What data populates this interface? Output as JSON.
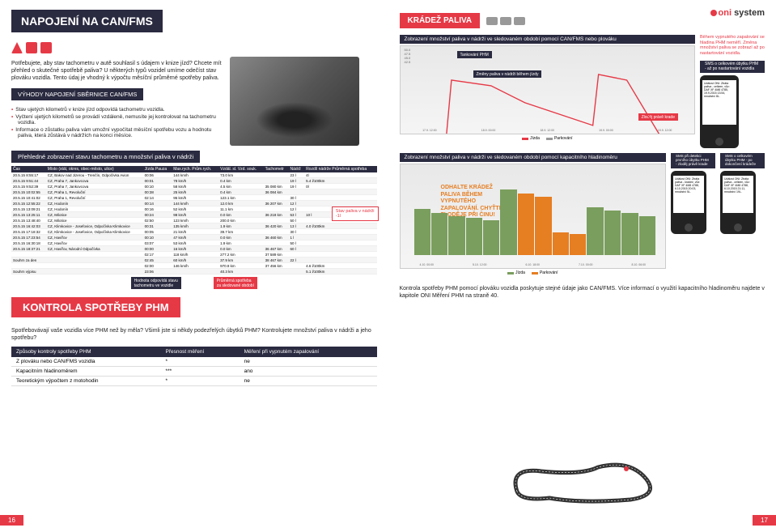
{
  "logo": {
    "brand": "oni",
    "suffix": "system"
  },
  "left": {
    "title": "NAPOJENÍ NA CAN/FMS",
    "intro": "Potřebujete, aby stav tachometru v autě souhlasil s údajem v knize jízd? Chcete mít přehled o skutečné spotřebě paliva? U některých typů vozidel umíme odečíst stav plováku vozidla. Tento údaj je vhodný k výpočtu měsíční průměrné spotřeby paliva.",
    "benefits_title": "VÝHODY NAPOJENÍ SBĚRNICE CAN/FMS",
    "benefits": [
      "Stav ujetých kilometrů v knize jízd odpovídá tachometru vozidla.",
      "Vyčtení ujetých kilometrů se provádí vzdáleně, nemusíte jej kontrolovat na tachometru vozidla.",
      "Informace o zůstatku paliva vám umožní vypočítat měsíční spotřebu vozu a hodnotu paliva, která zůstává v nádržích na konci měsíce."
    ],
    "table_title": "Přehledné zobrazení stavu tachometru a množství paliva v nádrži",
    "table": {
      "headers": [
        "Čas",
        "Místo (stát, okres, obec-město, ulice)",
        "Jízda Pauza",
        "Max.rych. Prům.rych.",
        "Vzdál. sl. Vzd. souk.",
        "Tachometr",
        "Nádrž",
        "Rozdíl nádrže Průměrná spotřeba"
      ],
      "rows": [
        [
          "20.5.15 8:55:17",
          "CZ, Bakov nad Jizerou - Trenčín, Odpočívka Avion",
          "00:06",
          "144 km/h",
          "73.0 km",
          "",
          "23 l",
          "4l"
        ],
        [
          "20.5.15 9:51:44",
          "CZ, Praha 7, Jankovcova",
          "00:01",
          "78 km/h",
          "0.4 km",
          "",
          "19 l",
          "5.4 l/100km"
        ],
        [
          "20.5.15 9:52:39",
          "CZ, Praha 7, Jankovcova",
          "00:10",
          "58 km/h",
          "4.5 km",
          "35 080 km",
          "19 l",
          "0l"
        ],
        [
          "20.5.15 10:02:55",
          "CZ, Praha 1, Revoluční",
          "00:38",
          "25 km/h",
          "0.4 km",
          "36 084 km",
          "",
          ""
        ],
        [
          "20.5.15 10:41:02",
          "CZ, Praha 1, Revoluční",
          "02:14",
          "95 km/h",
          "123.1 km",
          "",
          "30 l",
          ""
        ],
        [
          "20.5.15 12:55:22",
          "CZ, Hodonín",
          "00:14",
          "144 km/h",
          "12.0 km",
          "36 207 km",
          "12 l",
          ""
        ],
        [
          "20.5.15 13:09:21",
          "CZ, Hodonín",
          "00:16",
          "52 km/h",
          "11.1 km",
          "",
          "12 l",
          ""
        ],
        [
          "20.5.15 13:25:11",
          "CZ, Milotice",
          "00:24",
          "98 km/h",
          "0.0 km",
          "36 218 km",
          "53 l",
          "10 l"
        ],
        [
          "20.5.15 13:48:40",
          "CZ, Milotice",
          "02:50",
          "123 km/h",
          "200.0 km",
          "",
          "50 l",
          ""
        ],
        [
          "20.5.15 16:42:03",
          "CZ, Klimkovice - Josefovice, Odpočívka Klimkovice",
          "00:31",
          "135 km/h",
          "1.9 km",
          "36 420 km",
          "13 l",
          "4.0 l/100km"
        ],
        [
          "20.5.15 17:18:32",
          "CZ, Klimkovice - Josefovice, Odpočívka Klimkovice",
          "00:05",
          "21 km/h",
          "39.7 km",
          "",
          "30 l",
          ""
        ],
        [
          "20.5.15 17:23:54",
          "CZ, Havířov",
          "00:10",
          "47 km/h",
          "0.0 km",
          "36 460 km",
          "1 l",
          ""
        ],
        [
          "20.5.15 16:30:18",
          "CZ, Havířov",
          "03:07",
          "53 km/h",
          "1.9 km",
          "",
          "50 l",
          ""
        ],
        [
          "20.5.15 18:37:21",
          "CZ, Havířov, Národní Odpočívka",
          "00:00",
          "16 km/h",
          "0.0 km",
          "36 467 km",
          "60 l",
          ""
        ],
        [
          "",
          "",
          "02:17",
          "118 km/h",
          "277.2 km",
          "37 589 km",
          "",
          ""
        ],
        [
          "Souhrn za den",
          "",
          "02:45",
          "60 km/h",
          "37.9 km",
          "38 467 km",
          "22 l",
          ""
        ],
        [
          "",
          "",
          "02:00",
          "146 km/h",
          "970.9 km",
          "37 456 km",
          "",
          "4.6 l/100km"
        ],
        [
          "Souhrn výpisu",
          "",
          "23:06",
          "",
          "40.3 km",
          "",
          "",
          "5.1 l/100km"
        ]
      ]
    },
    "callout1": "Stav paliva v nádrži",
    "callout2_a": "Hodnota odpovídá stavu",
    "callout2_b": "tachometru ve vozidle",
    "callout3_a": "Průměrná spotřeba",
    "callout3_b": "za sledované období",
    "kontrola_title": "KONTROLA SPOTŘEBY PHM",
    "kontrola_text": "Spotřebovávají vaše vozidla více PHM než by měla? Všimli jste si někdy podezřelých úbytků PHM? Kontrolujete množství paliva v nádrži a jeho spotřebu?",
    "methods": {
      "headers": [
        "Způsoby kontroly spotřeby PHM",
        "Přesnost měření",
        "Měření při vypnutém zapalování"
      ],
      "rows": [
        [
          "Z plováku nebo CAN/FMS vozidla",
          "*",
          "ne"
        ],
        [
          "Kapacitním hladinoměrem",
          "***",
          "ano"
        ],
        [
          "Teoretickým výpočtem z motohodin",
          "*",
          "ne"
        ]
      ]
    },
    "page_num": "16"
  },
  "right": {
    "title": "KRÁDEŽ PALIVA",
    "chart1_title": "Zobrazení množství paliva v nádrži ve sledovaném období pomocí CAN/FMS nebo plováku",
    "ann_tank": "Tankování PHM",
    "ann_change": "Změny paliva v nádrži během jízdy",
    "ann_theft": "Zloděj právě krade",
    "note_right": "Během vypnutého zapalování se hladina PHM neměří. Změna množství paliva se zobrazí až po nastartování vozidla.",
    "sms1": "SMS o celkovém úbytku PHM - až po nastartování vozidla",
    "phone1": "Událost ONI: Ztráta paliva - celkem, vůz: DAF XF 4M8 4785, 19.9.2015 13:54, množství 8L.",
    "legend": {
      "a": "Jízda",
      "b": "Parkování"
    },
    "chart2_title": "Zobrazení množství paliva v nádrži ve sledovaném období pomocí kapacitního hladinoměru",
    "orange_msg": "ODHALTE KRÁDEŽ PALIVA BĚHEM VYPNUTÉHO ZAPALOVÁNÍ. CHYŤTE ZLODĚJE PŘI ČINU!",
    "sms2a": "SMS při detekci prvního úbytku PHM - zloděj právě krade",
    "sms2b": "SMS o celkovém úbytku PHM - po dokončení krádeže",
    "phone2a": "Událost ONI: Ztráta paliva - krádež, vůz: DAF XF 4M8 4788, 6.10.2015 20:03, množství 5L.",
    "phone2b": "Událost ONI: Ztráta paliva - celkem, vůz: DAF XF 4M8 4788, 6.10.2015 21:11, množství 19L.",
    "bottom_text": "Kontrola spotřeby PHM pomocí plováku vozidla poskytuje stejné údaje jako CAN/FMS. Více informací o využití kapacitního hladinoměru najdete v kapitole ONI Měření PHM na straně 40.",
    "page_num": "17"
  },
  "colors": {
    "red": "#e63946",
    "dark": "#2a2a40",
    "orange": "#e67e22",
    "green": "#7a9e5e"
  }
}
